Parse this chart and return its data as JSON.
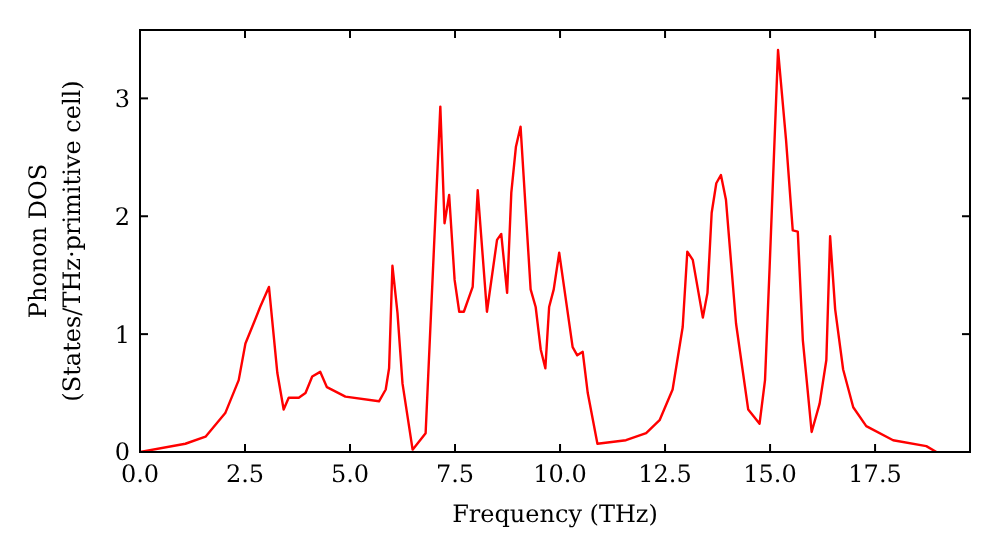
{
  "chart_data": {
    "type": "line",
    "xlabel": "Frequency (THz)",
    "ylabel": "Phonon DOS\n(States/THz·primitive cell)",
    "xlim": [
      0,
      19.76
    ],
    "ylim": [
      0,
      3.58
    ],
    "xticks": [
      {
        "value": 0,
        "label": "0.0"
      },
      2.5,
      {
        "value": 5,
        "label": "5.0"
      },
      7.5,
      {
        "value": 10,
        "label": "10.0"
      },
      12.5,
      {
        "value": 15,
        "label": "15.0"
      },
      17.5
    ],
    "yticks": [
      0,
      1,
      2,
      3
    ],
    "grid": false,
    "marker": "none",
    "line_style": "solid",
    "series": [
      {
        "color": "#ff0000",
        "x": [
          0,
          1.08,
          1.56,
          2.03,
          2.35,
          2.51,
          2.67,
          2.86,
          3.07,
          3.27,
          3.42,
          3.54,
          3.78,
          3.94,
          4.1,
          4.29,
          4.45,
          4.89,
          5.69,
          5.85,
          5.93,
          6.01,
          6.13,
          6.25,
          6.49,
          6.8,
          7.15,
          7.25,
          7.36,
          7.49,
          7.6,
          7.71,
          7.92,
          8.04,
          8.26,
          8.5,
          8.6,
          8.74,
          8.84,
          8.95,
          9.06,
          9.3,
          9.42,
          9.54,
          9.65,
          9.74,
          9.85,
          9.98,
          10.3,
          10.41,
          10.54,
          10.66,
          10.89,
          11.57,
          12.05,
          12.37,
          12.68,
          12.92,
          13.03,
          13.16,
          13.4,
          13.51,
          13.61,
          13.72,
          13.83,
          13.95,
          14.19,
          14.48,
          14.75,
          14.88,
          14.99,
          15.19,
          15.38,
          15.54,
          15.66,
          15.78,
          15.99,
          16.18,
          16.34,
          16.43,
          16.55,
          16.74,
          16.98,
          17.29,
          17.93,
          18.72,
          18.96
        ],
        "values": [
          0,
          0.07,
          0.13,
          0.33,
          0.61,
          0.92,
          1.06,
          1.23,
          1.4,
          0.67,
          0.36,
          0.46,
          0.46,
          0.5,
          0.64,
          0.68,
          0.55,
          0.47,
          0.43,
          0.53,
          0.71,
          1.58,
          1.18,
          0.58,
          0.02,
          0.16,
          2.93,
          1.94,
          2.18,
          1.46,
          1.19,
          1.19,
          1.4,
          2.22,
          1.19,
          1.8,
          1.85,
          1.35,
          2.2,
          2.59,
          2.76,
          1.38,
          1.23,
          0.87,
          0.71,
          1.23,
          1.38,
          1.69,
          0.89,
          0.82,
          0.85,
          0.5,
          0.07,
          0.1,
          0.16,
          0.27,
          0.53,
          1.06,
          1.7,
          1.63,
          1.14,
          1.35,
          2.03,
          2.28,
          2.35,
          2.14,
          1.09,
          0.36,
          0.24,
          0.61,
          1.57,
          3.41,
          2.65,
          1.88,
          1.87,
          0.95,
          0.17,
          0.41,
          0.78,
          1.83,
          1.21,
          0.7,
          0.38,
          0.22,
          0.1,
          0.05,
          0
        ]
      }
    ]
  }
}
